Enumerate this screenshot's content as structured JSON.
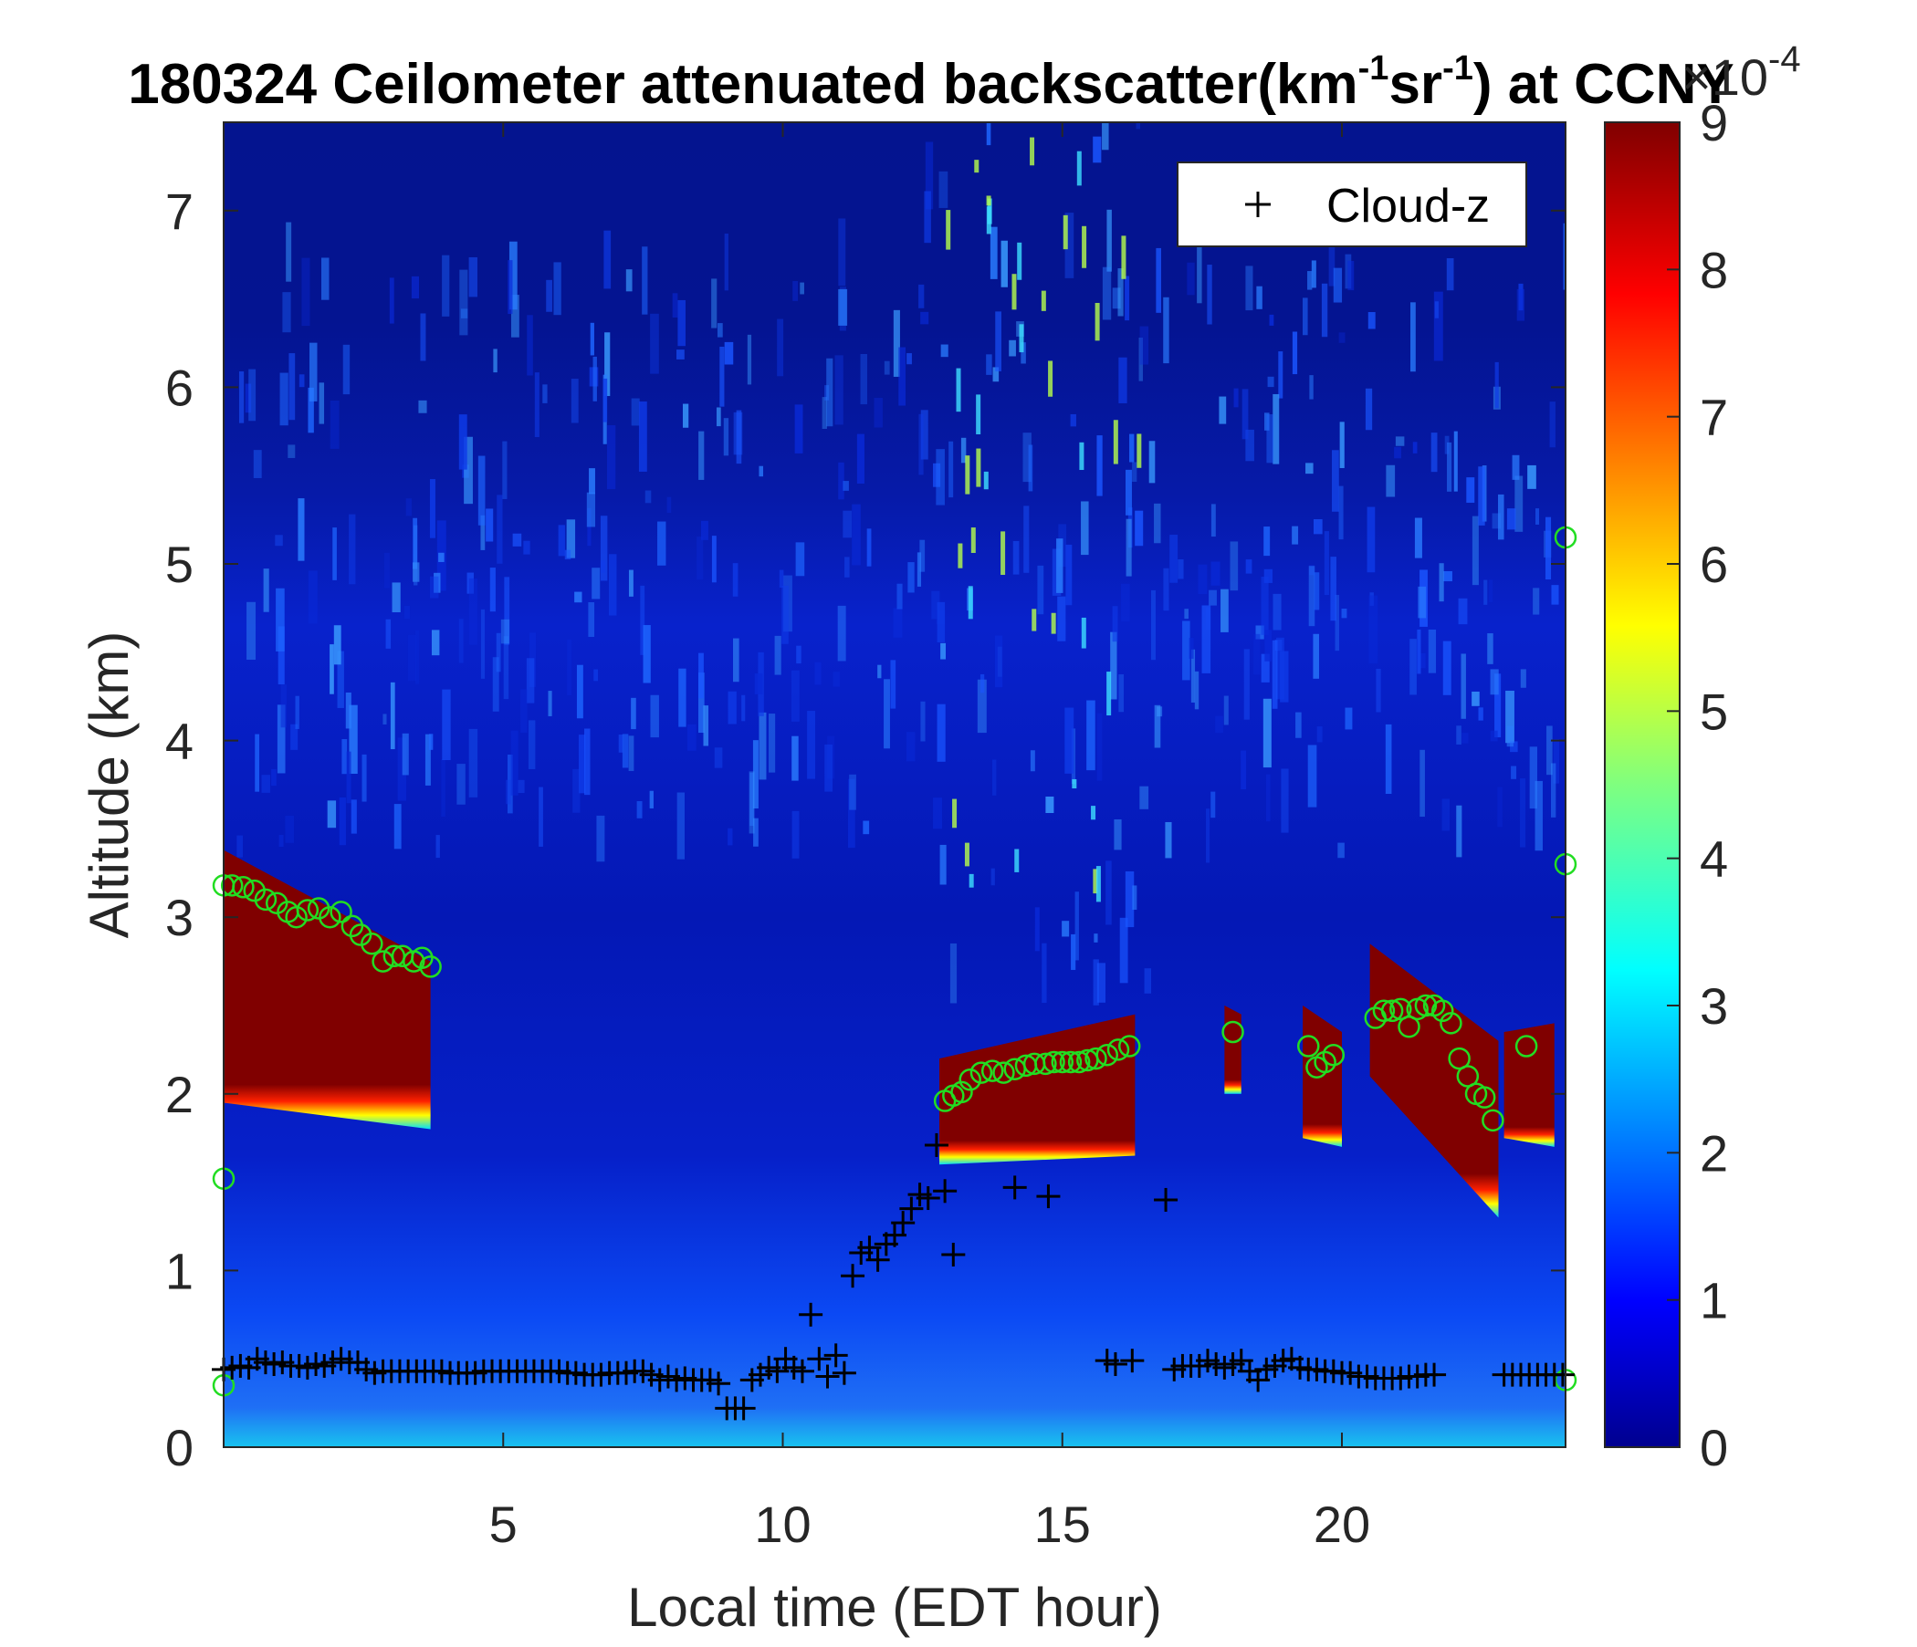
{
  "chart_data": {
    "type": "heatmap",
    "title_main": "180324 Ceilometer attenuated backscatter(km",
    "title_sup1": "-1",
    "title_mid": "sr",
    "title_sup2": "-1",
    "title_end": ") at CCNY",
    "xlabel": "Local time (EDT hour)",
    "ylabel": "Altitude (km)",
    "xlim": [
      0,
      24
    ],
    "ylim": [
      0,
      7.5
    ],
    "xticks": [
      5,
      10,
      15,
      20
    ],
    "yticks": [
      0,
      1,
      2,
      3,
      4,
      5,
      6,
      7
    ],
    "colormap": "jet",
    "colorbar": {
      "clim": [
        0,
        9
      ],
      "ticks": [
        0,
        1,
        2,
        3,
        4,
        5,
        6,
        7,
        8,
        9
      ],
      "exponent_base": "×10",
      "exponent_power": "-4"
    },
    "legend": {
      "location": "top-right",
      "entries": [
        {
          "label": "Cloud-z",
          "marker": "+",
          "color": "#000000"
        }
      ]
    },
    "cloud_layers": [
      {
        "x_start": 0.0,
        "x_end": 3.7,
        "top_start": 3.38,
        "top_end": 2.75,
        "base_start": 1.95,
        "base_end": 1.8
      },
      {
        "x_start": 12.8,
        "x_end": 16.3,
        "top_start": 2.2,
        "top_end": 2.45,
        "base_start": 1.6,
        "base_end": 1.65
      },
      {
        "x_start": 17.9,
        "x_end": 18.2,
        "top_start": 2.5,
        "top_end": 2.45,
        "base_start": 2.0,
        "base_end": 2.0
      },
      {
        "x_start": 19.3,
        "x_end": 20.0,
        "top_start": 2.5,
        "top_end": 2.35,
        "base_start": 1.75,
        "base_end": 1.7
      },
      {
        "x_start": 20.5,
        "x_end": 22.8,
        "top_start": 2.85,
        "top_end": 2.3,
        "base_start": 2.1,
        "base_end": 1.3
      },
      {
        "x_start": 22.9,
        "x_end": 23.8,
        "top_start": 2.35,
        "top_end": 2.4,
        "base_start": 1.75,
        "base_end": 1.7
      }
    ],
    "series": [
      {
        "marker": "o",
        "color": "#22dd22",
        "x": [
          0.0,
          0.15,
          0.35,
          0.55,
          0.75,
          0.95,
          1.15,
          1.3,
          1.5,
          1.7,
          1.9,
          2.1,
          2.3,
          2.45,
          2.65,
          2.85,
          3.05,
          3.2,
          3.4,
          3.55,
          3.7,
          0.0,
          0.0,
          12.9,
          13.05,
          13.2,
          13.35,
          13.55,
          13.75,
          13.95,
          14.15,
          14.35,
          14.5,
          14.7,
          14.85,
          15.0,
          15.15,
          15.3,
          15.45,
          15.6,
          15.8,
          16.0,
          16.2,
          18.05,
          19.4,
          19.55,
          19.7,
          19.85,
          20.6,
          20.75,
          20.9,
          21.05,
          21.2,
          21.35,
          21.5,
          21.65,
          21.8,
          21.95,
          22.1,
          22.25,
          22.4,
          22.55,
          22.7,
          23.3,
          24.0,
          24.0,
          24.0
        ],
        "y": [
          3.18,
          3.18,
          3.17,
          3.15,
          3.1,
          3.08,
          3.03,
          3.0,
          3.04,
          3.05,
          3.0,
          3.03,
          2.95,
          2.9,
          2.85,
          2.75,
          2.78,
          2.78,
          2.75,
          2.77,
          2.72,
          1.52,
          0.35,
          1.96,
          1.99,
          2.01,
          2.08,
          2.12,
          2.13,
          2.12,
          2.14,
          2.16,
          2.17,
          2.17,
          2.18,
          2.18,
          2.18,
          2.18,
          2.19,
          2.2,
          2.22,
          2.25,
          2.27,
          2.35,
          2.27,
          2.15,
          2.18,
          2.22,
          2.43,
          2.47,
          2.47,
          2.48,
          2.38,
          2.48,
          2.5,
          2.5,
          2.47,
          2.4,
          2.2,
          2.1,
          2.0,
          1.98,
          1.85,
          2.27,
          5.15,
          3.3,
          0.38
        ]
      },
      {
        "name": "Cloud-z",
        "marker": "+",
        "color": "#000000",
        "x": [
          0.0,
          0.15,
          0.3,
          0.45,
          0.6,
          0.75,
          0.9,
          1.05,
          1.2,
          1.35,
          1.5,
          1.65,
          1.8,
          1.95,
          2.1,
          2.25,
          2.4,
          2.55,
          2.7,
          2.85,
          3.0,
          3.15,
          3.3,
          3.45,
          3.6,
          3.75,
          3.9,
          4.05,
          4.2,
          4.35,
          4.5,
          4.65,
          4.8,
          4.95,
          5.1,
          5.25,
          5.4,
          5.55,
          5.7,
          5.85,
          6.0,
          6.15,
          6.3,
          6.45,
          6.6,
          6.75,
          6.9,
          7.05,
          7.2,
          7.35,
          7.5,
          7.65,
          7.8,
          7.95,
          8.1,
          8.25,
          8.4,
          8.55,
          8.7,
          8.85,
          9.0,
          9.15,
          9.3,
          9.45,
          9.6,
          9.75,
          9.9,
          10.05,
          10.2,
          10.35,
          10.5,
          10.65,
          10.8,
          10.95,
          11.1,
          11.25,
          11.4,
          11.55,
          11.7,
          11.85,
          12.0,
          12.15,
          12.3,
          12.45,
          12.6,
          12.75,
          12.9,
          13.05,
          14.15,
          14.75,
          15.8,
          15.95,
          16.25,
          16.85,
          17.0,
          17.15,
          17.3,
          17.45,
          17.6,
          17.75,
          17.9,
          18.05,
          18.2,
          18.35,
          18.5,
          18.65,
          18.8,
          18.95,
          19.1,
          19.25,
          19.4,
          19.55,
          19.7,
          19.85,
          20.0,
          20.15,
          20.3,
          20.45,
          20.6,
          20.75,
          20.9,
          21.05,
          21.2,
          21.35,
          21.5,
          21.65,
          22.9,
          23.05,
          23.2,
          23.35,
          23.5,
          23.65,
          23.8,
          23.95
        ],
        "y": [
          0.44,
          0.45,
          0.46,
          0.45,
          0.5,
          0.48,
          0.47,
          0.48,
          0.46,
          0.46,
          0.45,
          0.47,
          0.46,
          0.48,
          0.5,
          0.48,
          0.48,
          0.44,
          0.42,
          0.43,
          0.43,
          0.43,
          0.43,
          0.43,
          0.43,
          0.43,
          0.43,
          0.42,
          0.42,
          0.42,
          0.42,
          0.43,
          0.43,
          0.43,
          0.43,
          0.43,
          0.43,
          0.43,
          0.43,
          0.43,
          0.43,
          0.42,
          0.42,
          0.41,
          0.41,
          0.41,
          0.42,
          0.42,
          0.42,
          0.43,
          0.43,
          0.41,
          0.38,
          0.4,
          0.38,
          0.39,
          0.38,
          0.38,
          0.38,
          0.36,
          0.22,
          0.22,
          0.22,
          0.38,
          0.41,
          0.45,
          0.43,
          0.5,
          0.45,
          0.43,
          0.75,
          0.5,
          0.4,
          0.52,
          0.42,
          0.97,
          1.1,
          1.13,
          1.06,
          1.15,
          1.2,
          1.27,
          1.35,
          1.43,
          1.41,
          1.71,
          1.45,
          1.09,
          1.47,
          1.42,
          0.49,
          0.47,
          0.49,
          1.4,
          0.44,
          0.46,
          0.46,
          0.46,
          0.49,
          0.47,
          0.45,
          0.47,
          0.49,
          0.43,
          0.38,
          0.44,
          0.46,
          0.49,
          0.5,
          0.45,
          0.44,
          0.44,
          0.43,
          0.43,
          0.42,
          0.42,
          0.4,
          0.4,
          0.39,
          0.39,
          0.39,
          0.39,
          0.4,
          0.4,
          0.41,
          0.41,
          0.41,
          0.41,
          0.41,
          0.41,
          0.41,
          0.41,
          0.41,
          0.41
        ]
      }
    ]
  }
}
